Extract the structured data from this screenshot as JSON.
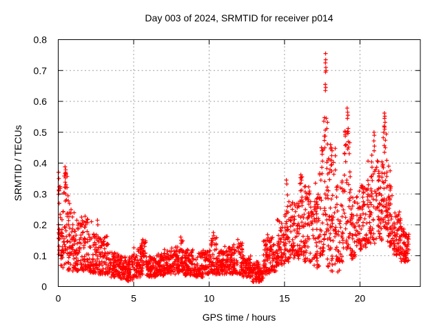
{
  "chart_data": {
    "type": "scatter",
    "title": "Day 003 of 2024, SRMTID for receiver p014",
    "xlabel": "GPS time / hours",
    "ylabel": "SRMTID / TECUs",
    "xlim": [
      0,
      24
    ],
    "ylim": [
      0,
      0.8
    ],
    "xticks": {
      "values": [
        0,
        5,
        10,
        15,
        20
      ],
      "labels": [
        "0",
        "5",
        "10",
        "15",
        "20"
      ]
    },
    "yticks": {
      "values": [
        0,
        0.1,
        0.2,
        0.3,
        0.4,
        0.5,
        0.6,
        0.7,
        0.8
      ],
      "labels": [
        "0",
        "0.1",
        "0.2",
        "0.3",
        "0.4",
        "0.5",
        "0.6",
        "0.7",
        "0.8"
      ]
    },
    "grid": {
      "show": true,
      "color": "#9c9c9c",
      "dash": [
        2,
        3.5
      ]
    },
    "marker": {
      "shape": "plus",
      "color": "#ff0000",
      "half_size": 3,
      "stroke_width": 1.2
    },
    "legend": {
      "show": false
    },
    "seed": 20240103,
    "series": [
      {
        "name": "SRMTID",
        "comment": "dense 30s-cadence scatter; density_bands = [x_start_h, x_end_h, n_points, y_min_TECU, y_max_TECU, low_bias_exponent]; outlier_points = notable extremes read from plot",
        "density_bands": [
          [
            0.0,
            0.15,
            20,
            0.1,
            0.33,
            1.0
          ],
          [
            0.15,
            0.35,
            24,
            0.06,
            0.25,
            1.2
          ],
          [
            0.35,
            0.65,
            36,
            0.07,
            0.39,
            1.1
          ],
          [
            0.65,
            1.0,
            42,
            0.05,
            0.28,
            1.4
          ],
          [
            1.0,
            1.5,
            58,
            0.05,
            0.24,
            1.5
          ],
          [
            1.5,
            2.0,
            58,
            0.05,
            0.23,
            1.4
          ],
          [
            2.0,
            2.5,
            56,
            0.04,
            0.18,
            1.5
          ],
          [
            2.5,
            3.0,
            56,
            0.04,
            0.17,
            1.5
          ],
          [
            3.0,
            3.4,
            44,
            0.04,
            0.165,
            1.6
          ],
          [
            3.4,
            4.0,
            66,
            0.03,
            0.11,
            1.3
          ],
          [
            4.0,
            4.5,
            55,
            0.025,
            0.1,
            1.2
          ],
          [
            4.5,
            5.0,
            55,
            0.015,
            0.1,
            1.2
          ],
          [
            5.0,
            5.5,
            55,
            0.03,
            0.13,
            1.4
          ],
          [
            5.5,
            5.8,
            33,
            0.04,
            0.15,
            1.4
          ],
          [
            5.8,
            6.5,
            77,
            0.03,
            0.1,
            1.2
          ],
          [
            6.5,
            7.0,
            55,
            0.035,
            0.11,
            1.3
          ],
          [
            7.0,
            7.5,
            55,
            0.04,
            0.12,
            1.3
          ],
          [
            7.5,
            8.0,
            55,
            0.04,
            0.13,
            1.4
          ],
          [
            8.0,
            8.3,
            33,
            0.05,
            0.15,
            1.4
          ],
          [
            8.3,
            9.0,
            77,
            0.035,
            0.12,
            1.3
          ],
          [
            9.0,
            9.6,
            66,
            0.03,
            0.11,
            1.3
          ],
          [
            9.6,
            10.1,
            55,
            0.04,
            0.12,
            1.3
          ],
          [
            10.1,
            10.5,
            44,
            0.04,
            0.16,
            1.6
          ],
          [
            10.5,
            11.0,
            55,
            0.04,
            0.12,
            1.3
          ],
          [
            11.0,
            11.6,
            66,
            0.04,
            0.13,
            1.4
          ],
          [
            11.6,
            12.2,
            66,
            0.04,
            0.145,
            1.5
          ],
          [
            12.2,
            12.8,
            66,
            0.03,
            0.1,
            1.3
          ],
          [
            12.8,
            13.3,
            55,
            0.015,
            0.08,
            1.2
          ],
          [
            13.3,
            13.6,
            33,
            0.015,
            0.06,
            1.1
          ],
          [
            13.6,
            14.0,
            44,
            0.04,
            0.15,
            1.4
          ],
          [
            14.0,
            14.5,
            55,
            0.05,
            0.16,
            1.4
          ],
          [
            14.5,
            15.0,
            55,
            0.07,
            0.22,
            1.4
          ],
          [
            15.0,
            15.4,
            44,
            0.08,
            0.3,
            1.5
          ],
          [
            15.4,
            16.0,
            66,
            0.09,
            0.28,
            1.4
          ],
          [
            16.0,
            16.3,
            33,
            0.1,
            0.36,
            1.5
          ],
          [
            16.3,
            16.8,
            55,
            0.08,
            0.33,
            1.4
          ],
          [
            16.8,
            17.3,
            55,
            0.06,
            0.3,
            1.3
          ],
          [
            17.3,
            17.6,
            33,
            0.1,
            0.45,
            1.4
          ],
          [
            17.6,
            17.9,
            36,
            0.15,
            0.55,
            1.3
          ],
          [
            17.8,
            18.8,
            14,
            0.04,
            0.1,
            1.0
          ],
          [
            17.9,
            18.4,
            50,
            0.12,
            0.45,
            1.4
          ],
          [
            18.4,
            18.9,
            50,
            0.08,
            0.35,
            1.4
          ],
          [
            18.9,
            19.35,
            45,
            0.12,
            0.52,
            1.3
          ],
          [
            19.35,
            19.9,
            55,
            0.09,
            0.32,
            1.3
          ],
          [
            19.9,
            20.5,
            62,
            0.12,
            0.33,
            1.3
          ],
          [
            20.5,
            21.0,
            55,
            0.14,
            0.44,
            1.3
          ],
          [
            21.0,
            21.5,
            55,
            0.15,
            0.42,
            1.3
          ],
          [
            21.5,
            21.8,
            40,
            0.18,
            0.52,
            1.2
          ],
          [
            21.8,
            22.2,
            50,
            0.13,
            0.33,
            1.2
          ],
          [
            22.2,
            22.7,
            55,
            0.1,
            0.25,
            1.2
          ],
          [
            22.7,
            23.05,
            40,
            0.08,
            0.2,
            1.1
          ],
          [
            23.05,
            23.25,
            20,
            0.08,
            0.17,
            1.0
          ]
        ],
        "outlier_points": [
          [
            0.02,
            0.37
          ],
          [
            0.04,
            0.35
          ],
          [
            0.05,
            0.31
          ],
          [
            0.45,
            0.388
          ],
          [
            0.5,
            0.378
          ],
          [
            0.52,
            0.365
          ],
          [
            0.48,
            0.352
          ],
          [
            0.46,
            0.338
          ],
          [
            0.51,
            0.33
          ],
          [
            0.43,
            0.322
          ],
          [
            1.78,
            0.228
          ],
          [
            2.2,
            0.21
          ],
          [
            2.6,
            0.215
          ],
          [
            2.62,
            0.2
          ],
          [
            3.18,
            0.162
          ],
          [
            5.6,
            0.152
          ],
          [
            5.63,
            0.143
          ],
          [
            8.12,
            0.16
          ],
          [
            8.16,
            0.15
          ],
          [
            10.28,
            0.175
          ],
          [
            10.31,
            0.165
          ],
          [
            10.33,
            0.155
          ],
          [
            11.9,
            0.152
          ],
          [
            13.88,
            0.168
          ],
          [
            13.91,
            0.158
          ],
          [
            15.12,
            0.345
          ],
          [
            15.15,
            0.332
          ],
          [
            16.08,
            0.362
          ],
          [
            16.1,
            0.352
          ],
          [
            16.12,
            0.345
          ],
          [
            16.09,
            0.335
          ],
          [
            17.05,
            0.335
          ],
          [
            17.45,
            0.45
          ],
          [
            17.48,
            0.44
          ],
          [
            17.72,
            0.755
          ],
          [
            17.73,
            0.735
          ],
          [
            17.71,
            0.725
          ],
          [
            17.74,
            0.71
          ],
          [
            17.72,
            0.695
          ],
          [
            17.75,
            0.7
          ],
          [
            17.7,
            0.655
          ],
          [
            17.73,
            0.645
          ],
          [
            17.71,
            0.635
          ],
          [
            18.05,
            0.46
          ],
          [
            18.1,
            0.45
          ],
          [
            18.15,
            0.44
          ],
          [
            19.15,
            0.578
          ],
          [
            19.18,
            0.565
          ],
          [
            19.2,
            0.555
          ],
          [
            19.17,
            0.545
          ],
          [
            19.22,
            0.512
          ],
          [
            19.19,
            0.503
          ],
          [
            19.21,
            0.496
          ],
          [
            19.16,
            0.5
          ],
          [
            20.93,
            0.5
          ],
          [
            20.95,
            0.49
          ],
          [
            20.92,
            0.472
          ],
          [
            20.96,
            0.455
          ],
          [
            20.94,
            0.44
          ],
          [
            21.62,
            0.562
          ],
          [
            21.65,
            0.552
          ],
          [
            21.63,
            0.545
          ],
          [
            21.66,
            0.532
          ],
          [
            21.6,
            0.52
          ],
          [
            21.64,
            0.51
          ],
          [
            21.9,
            0.39
          ],
          [
            22.0,
            0.375
          ]
        ]
      }
    ]
  }
}
